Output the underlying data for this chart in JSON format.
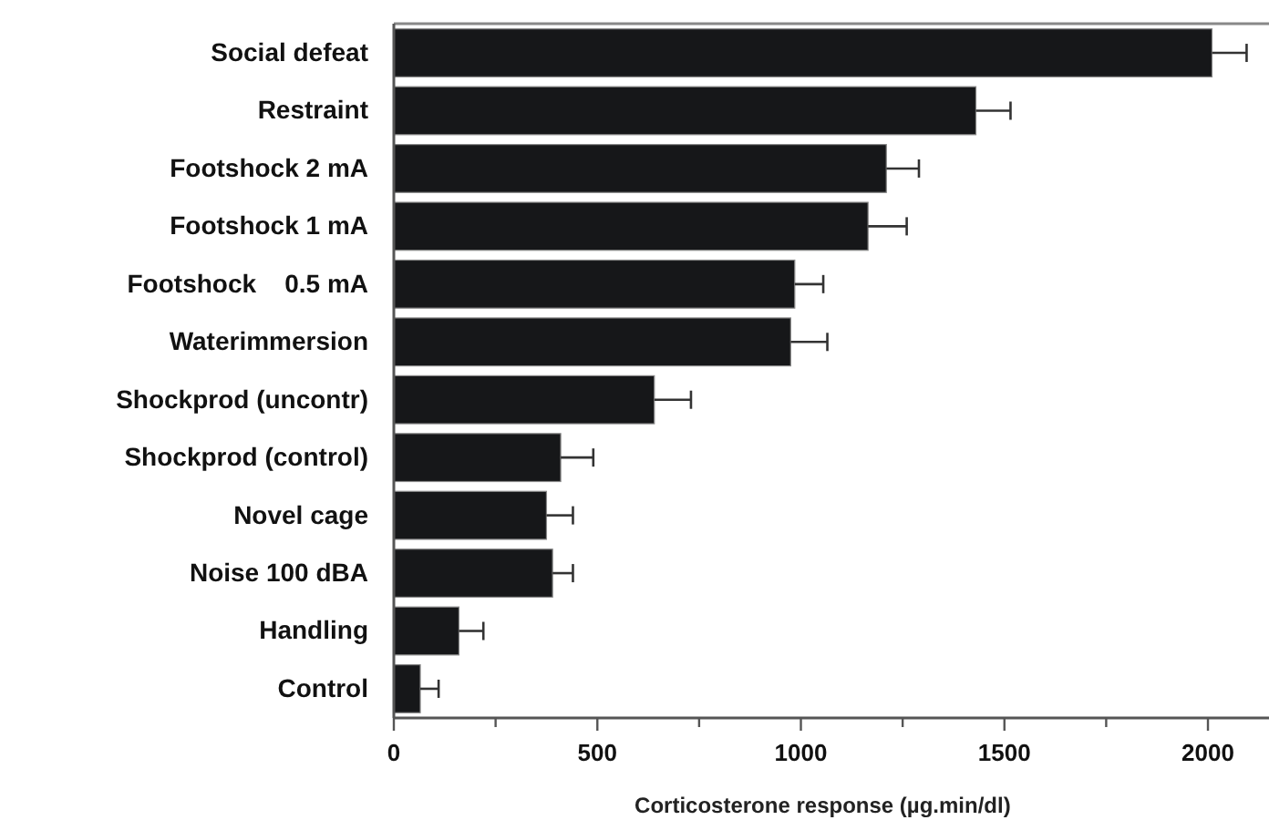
{
  "chart_data": {
    "type": "bar",
    "orientation": "horizontal",
    "xlabel": "Corticosterone response (µg.min/dl)",
    "categories": [
      "Social defeat",
      "Restraint",
      "Footshock 2 mA",
      "Footshock 1 mA",
      "Footshock    0.5 mA",
      "Waterimmersion",
      "Shockprod (uncontr)",
      "Shockprod (control)",
      "Novel cage",
      "Noise 100 dBA",
      "Handling",
      "Control"
    ],
    "values": [
      2010,
      1430,
      1210,
      1165,
      985,
      975,
      640,
      410,
      375,
      390,
      160,
      65
    ],
    "errors": [
      85,
      85,
      80,
      95,
      70,
      90,
      90,
      80,
      65,
      50,
      60,
      45
    ],
    "color": "#161719",
    "xlim": [
      0,
      2150
    ],
    "xticks": [
      0,
      {
        "value": 250,
        "label": null
      },
      500,
      {
        "value": 750,
        "label": null
      },
      1000,
      {
        "value": 1250,
        "label": null
      },
      1500,
      {
        "value": 1750,
        "label": null
      },
      2000
    ],
    "grid": false
  }
}
